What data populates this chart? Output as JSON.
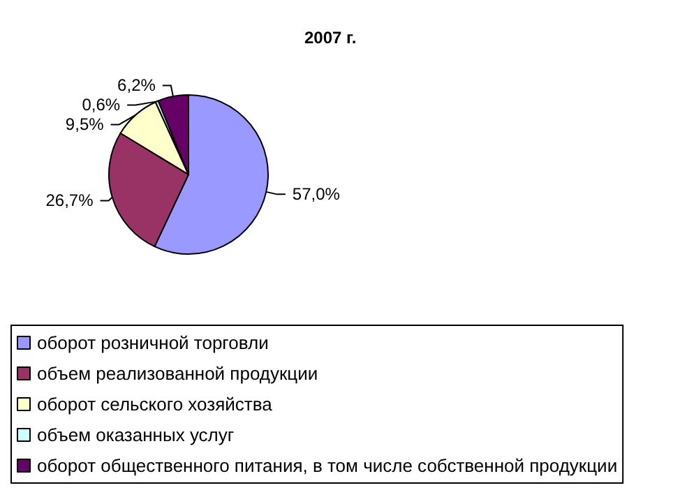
{
  "chart_data": {
    "type": "pie",
    "title": "2007 г.",
    "categories": [
      "оборот розничной торговли",
      "объем реализованной продукции",
      "оборот сельского хозяйства",
      "объем оказанных услуг",
      "оборот общественного питания, в том числе собственной продукции"
    ],
    "values": [
      57.0,
      26.7,
      9.5,
      0.6,
      6.2
    ],
    "value_labels": [
      "57,0%",
      "26,7%",
      "9,5%",
      "0,6%",
      "6,2%"
    ],
    "colors": [
      "#9999ff",
      "#993366",
      "#ffffcc",
      "#ccffff",
      "#660066"
    ],
    "legend": "bottom"
  }
}
